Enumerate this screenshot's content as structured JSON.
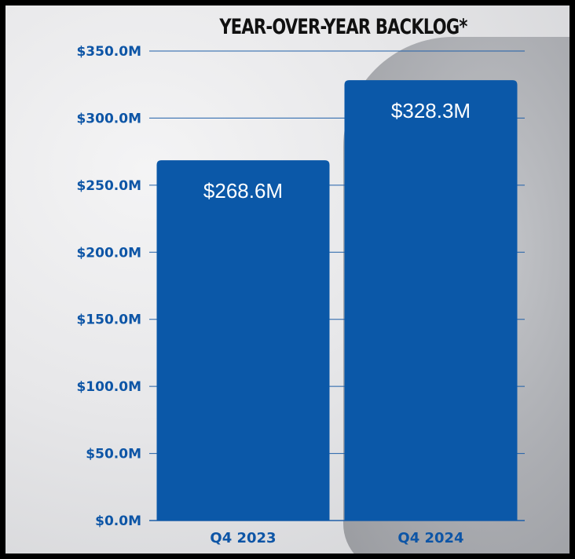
{
  "chart_data": {
    "type": "bar",
    "title": "YEAR-OVER-YEAR BACKLOG*",
    "categories": [
      "Q4 2023",
      "Q4 2024"
    ],
    "values": [
      268.6,
      328.3
    ],
    "data_labels": [
      "$268.6M",
      "$328.3M"
    ],
    "ylim": [
      0,
      350
    ],
    "yticks": [
      0,
      50,
      100,
      150,
      200,
      250,
      300,
      350
    ],
    "ytick_labels": [
      "$0.0M",
      "$50.0M",
      "$100.0M",
      "$150.0M",
      "$200.0M",
      "$250.0M",
      "$300.0M",
      "$350.0M"
    ],
    "grid": true,
    "bar_color": "#0b58a8",
    "grid_color": "#1f5fa8",
    "tick_color": "#0d55a6"
  }
}
